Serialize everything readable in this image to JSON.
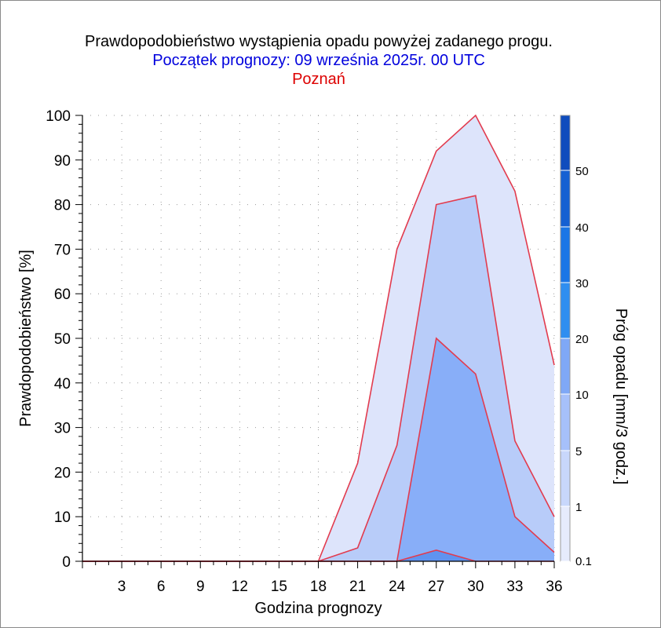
{
  "header": {
    "title": "Prawdopodobieństwo wystąpienia opadu powyżej zadanego progu.",
    "subtitle": "Początek prognozy: 09 września 2025r. 00 UTC",
    "location": "Poznań"
  },
  "chart_data": {
    "type": "area",
    "xlabel": "Godzina prognozy",
    "ylabel": "Prawdopodobieństwo [%]",
    "colorbar_label": "Próg opadu [mm/3 godz.]",
    "xlim": [
      0,
      36
    ],
    "ylim": [
      0,
      100
    ],
    "x_ticks": [
      3,
      6,
      9,
      12,
      15,
      18,
      21,
      24,
      27,
      30,
      33,
      36
    ],
    "y_ticks": [
      0,
      10,
      20,
      30,
      40,
      50,
      60,
      70,
      80,
      90,
      100
    ],
    "grid": true,
    "x": [
      0,
      3,
      6,
      9,
      12,
      15,
      18,
      21,
      24,
      27,
      30,
      33,
      36
    ],
    "series": [
      {
        "name": "0.1",
        "color": "#dde4fb",
        "values": [
          0,
          0,
          0,
          0,
          0,
          0,
          0,
          22,
          70,
          92,
          100,
          83,
          44
        ]
      },
      {
        "name": "1",
        "color": "#b8ccf9",
        "values": [
          0,
          0,
          0,
          0,
          0,
          0,
          0,
          3,
          26,
          80,
          82,
          27,
          10
        ]
      },
      {
        "name": "5",
        "color": "#88aef8",
        "values": [
          0,
          0,
          0,
          0,
          0,
          0,
          0,
          0,
          0,
          50,
          42,
          10,
          2
        ]
      },
      {
        "name": "10",
        "color": "#5f93f0",
        "values": [
          0,
          0,
          0,
          0,
          0,
          0,
          0,
          0,
          0,
          2.5,
          0,
          0,
          0
        ]
      }
    ],
    "colorbar": {
      "ticks": [
        "0.1",
        "1",
        "5",
        "10",
        "20",
        "30",
        "40",
        "50"
      ],
      "colors": [
        "#e6ebfc",
        "#c8d7fb",
        "#a6c0fa",
        "#7fa8f6",
        "#2f8ef0",
        "#1a76e6",
        "#1560d2",
        "#0f4cbd",
        "#0a3ba6"
      ]
    },
    "line_color": "#e23b4e"
  }
}
